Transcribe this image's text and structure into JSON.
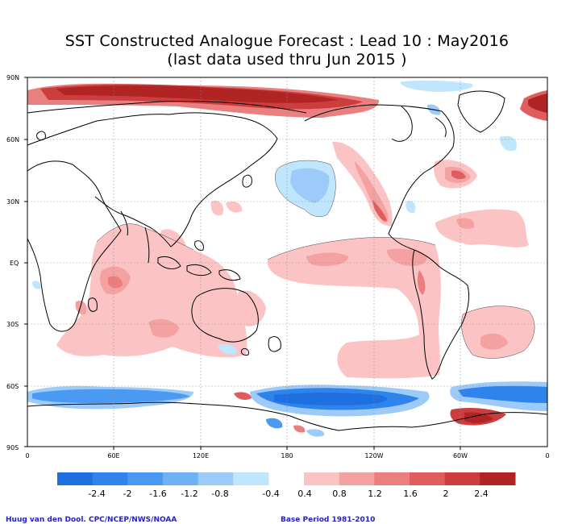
{
  "title_line1": "SST Constructed Analogue Forecast : Lead 10 : May2016",
  "title_line2": "(last data used thru Jun 2015 )",
  "lat_labels": [
    "90N",
    "60N",
    "30N",
    "EQ",
    "30S",
    "60S",
    "90S"
  ],
  "lon_labels": [
    "0",
    "60E",
    "120E",
    "180",
    "120W",
    "60W",
    "0"
  ],
  "colorbar": {
    "negative_colors": [
      "#1e6fe0",
      "#2f84ec",
      "#4a99f2",
      "#6fb1f6",
      "#9ccaf9",
      "#bfe6fc"
    ],
    "positive_colors": [
      "#fbc3c3",
      "#f4a1a1",
      "#ea7f7f",
      "#df5d5d",
      "#cc3d3d",
      "#b02424"
    ],
    "negative_labels": [
      "-2.4",
      "-2",
      "-1.6",
      "-1.2",
      "-0.8",
      "-0.4"
    ],
    "positive_labels": [
      "0.4",
      "0.8",
      "1.2",
      "1.6",
      "2",
      "2.4"
    ]
  },
  "credit_left": "Huug van den Dool. CPC/NCEP/NWS/NOAA",
  "credit_right": "Base Period 1981-2010"
}
